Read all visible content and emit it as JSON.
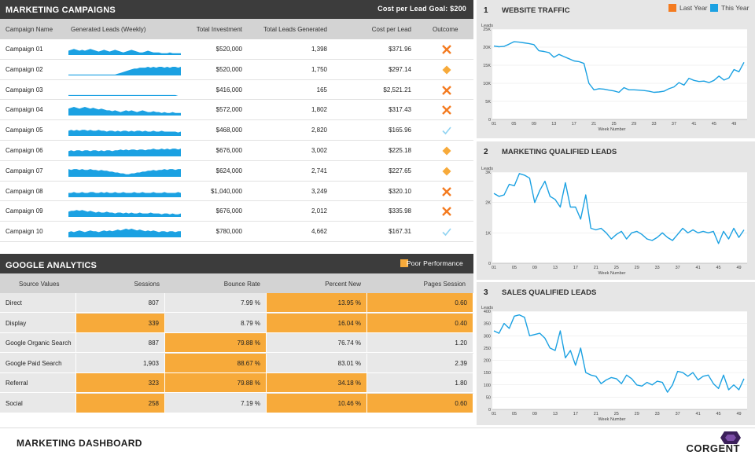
{
  "campaigns": {
    "title": "MARKETING CAMPAIGNS",
    "goal": "Cost per Lead Goal: $200",
    "columns": [
      "Campaign Name",
      "Generated Leads (Weekly)",
      "Total Investment",
      "Total Leads Generated",
      "Cost per Lead",
      "Outcome"
    ],
    "rows": [
      {
        "name": "Campaign 01",
        "investment": "$520,000",
        "leads": "1,398",
        "cpl": "$371.96",
        "outcome": "x",
        "spark": [
          5,
          6,
          7,
          6,
          5,
          6,
          5,
          6,
          7,
          6,
          5,
          4,
          5,
          6,
          5,
          4,
          5,
          6,
          5,
          4,
          3,
          4,
          5,
          6,
          5,
          4,
          3,
          3,
          4,
          5,
          4,
          3,
          3,
          3,
          2,
          2,
          2,
          3,
          2,
          2,
          2,
          2
        ]
      },
      {
        "name": "Campaign 02",
        "investment": "$520,000",
        "leads": "1,750",
        "cpl": "$297.14",
        "outcome": "diamond",
        "spark": [
          1,
          1,
          1,
          1,
          1,
          1,
          1,
          1,
          1,
          1,
          1,
          1,
          1,
          1,
          1,
          1,
          1,
          1,
          2,
          3,
          4,
          5,
          6,
          7,
          8,
          8,
          9,
          9,
          9,
          10,
          9,
          10,
          9,
          10,
          10,
          9,
          10,
          9,
          10,
          10,
          9,
          10
        ]
      },
      {
        "name": "Campaign 03",
        "investment": "$416,000",
        "leads": "165",
        "cpl": "$2,521.21",
        "outcome": "x",
        "spark": [
          1,
          1,
          1,
          1,
          1,
          1,
          1,
          1,
          1,
          1,
          1,
          1,
          1,
          1,
          1,
          1,
          1,
          1,
          1,
          1,
          1,
          1,
          1,
          1,
          1,
          1,
          1,
          1,
          1,
          1,
          1,
          1,
          1,
          1,
          1,
          1,
          1,
          1,
          1,
          1,
          0,
          0
        ]
      },
      {
        "name": "Campaign 04",
        "investment": "$572,000",
        "leads": "1,802",
        "cpl": "$317.43",
        "outcome": "x",
        "spark": [
          8,
          9,
          10,
          9,
          8,
          9,
          10,
          9,
          8,
          9,
          8,
          7,
          8,
          7,
          6,
          6,
          5,
          6,
          5,
          4,
          5,
          6,
          5,
          6,
          5,
          4,
          5,
          6,
          5,
          4,
          4,
          5,
          4,
          4,
          3,
          4,
          3,
          3,
          4,
          3,
          3,
          3
        ]
      },
      {
        "name": "Campaign 05",
        "investment": "$468,000",
        "leads": "2,820",
        "cpl": "$165.96",
        "outcome": "check",
        "spark": [
          6,
          7,
          6,
          7,
          6,
          7,
          7,
          6,
          7,
          6,
          6,
          7,
          6,
          6,
          5,
          6,
          6,
          5,
          6,
          5,
          6,
          6,
          5,
          6,
          5,
          6,
          6,
          5,
          6,
          5,
          5,
          6,
          5,
          5,
          6,
          5,
          5,
          5,
          5,
          5,
          4,
          5
        ]
      },
      {
        "name": "Campaign 06",
        "investment": "$676,000",
        "leads": "3,002",
        "cpl": "$225.18",
        "outcome": "diamond",
        "spark": [
          6,
          7,
          6,
          7,
          7,
          6,
          7,
          7,
          6,
          7,
          7,
          6,
          7,
          6,
          7,
          7,
          6,
          7,
          7,
          8,
          7,
          8,
          7,
          8,
          8,
          7,
          8,
          8,
          7,
          8,
          8,
          9,
          8,
          8,
          9,
          8,
          9,
          8,
          9,
          9,
          8,
          9
        ]
      },
      {
        "name": "Campaign 07",
        "investment": "$624,000",
        "leads": "2,741",
        "cpl": "$227.65",
        "outcome": "diamond",
        "spark": [
          9,
          8,
          9,
          9,
          8,
          9,
          8,
          8,
          9,
          8,
          8,
          7,
          8,
          7,
          7,
          6,
          6,
          5,
          5,
          4,
          4,
          3,
          3,
          4,
          4,
          5,
          5,
          6,
          6,
          7,
          7,
          8,
          7,
          8,
          8,
          9,
          8,
          9,
          9,
          8,
          9,
          9
        ]
      },
      {
        "name": "Campaign 08",
        "investment": "$1,040,000",
        "leads": "3,249",
        "cpl": "$320.10",
        "outcome": "x",
        "spark": [
          5,
          5,
          6,
          5,
          5,
          6,
          5,
          5,
          6,
          6,
          5,
          5,
          6,
          5,
          6,
          5,
          5,
          6,
          5,
          5,
          6,
          5,
          5,
          5,
          6,
          5,
          5,
          6,
          5,
          5,
          5,
          6,
          5,
          5,
          5,
          6,
          5,
          5,
          5,
          5,
          6,
          5
        ]
      },
      {
        "name": "Campaign 09",
        "investment": "$676,000",
        "leads": "2,012",
        "cpl": "$335.98",
        "outcome": "x",
        "spark": [
          6,
          7,
          7,
          8,
          7,
          8,
          7,
          6,
          7,
          6,
          5,
          6,
          5,
          5,
          6,
          5,
          5,
          4,
          5,
          5,
          4,
          5,
          4,
          5,
          4,
          4,
          5,
          4,
          4,
          4,
          5,
          4,
          4,
          4,
          3,
          4,
          4,
          3,
          4,
          3,
          3,
          4
        ]
      },
      {
        "name": "Campaign 10",
        "investment": "$780,000",
        "leads": "4,662",
        "cpl": "$167.31",
        "outcome": "check",
        "spark": [
          6,
          7,
          6,
          7,
          8,
          7,
          6,
          7,
          8,
          7,
          7,
          6,
          7,
          8,
          7,
          8,
          7,
          8,
          9,
          8,
          9,
          10,
          9,
          10,
          9,
          8,
          9,
          8,
          7,
          8,
          7,
          8,
          7,
          6,
          7,
          7,
          6,
          7,
          7,
          6,
          7,
          7
        ]
      }
    ]
  },
  "analytics": {
    "title": "GOOGLE ANALYTICS",
    "legend": "Poor Performance",
    "columns": [
      "Source Values",
      "Sessions",
      "Bounce Rate",
      "Percent New",
      "Pages Session"
    ],
    "rows": [
      {
        "source": "Direct",
        "sessions": "807",
        "bounce": "7.99 %",
        "pnew": "13.95 %",
        "pages": "0.60",
        "poor": [
          false,
          false,
          true,
          true
        ]
      },
      {
        "source": "Display",
        "sessions": "339",
        "bounce": "8.79 %",
        "pnew": "16.04 %",
        "pages": "0.40",
        "poor": [
          true,
          false,
          true,
          true
        ]
      },
      {
        "source": "Google Organic Search",
        "sessions": "887",
        "bounce": "79.88 %",
        "pnew": "76.74 %",
        "pages": "1.20",
        "poor": [
          false,
          true,
          false,
          false
        ]
      },
      {
        "source": "Google Paid Search",
        "sessions": "1,903",
        "bounce": "88.67 %",
        "pnew": "83.01 %",
        "pages": "2.39",
        "poor": [
          false,
          true,
          false,
          false
        ]
      },
      {
        "source": "Referral",
        "sessions": "323",
        "bounce": "79.88 %",
        "pnew": "34.18 %",
        "pages": "1.80",
        "poor": [
          true,
          true,
          true,
          false
        ]
      },
      {
        "source": "Social",
        "sessions": "258",
        "bounce": "7.19 %",
        "pnew": "10.46 %",
        "pages": "0.60",
        "poor": [
          true,
          false,
          true,
          true
        ]
      }
    ],
    "colors": {
      "poor": "#f7aa3a",
      "normal": "#e8e8e8"
    }
  },
  "chart_data": [
    {
      "type": "line",
      "number": "1",
      "title": "WEBSITE TRAFFIC",
      "ylabel": "Leads",
      "xlabel": "Week Number",
      "yticks": [
        "0",
        "5K",
        "10K",
        "15K",
        "20K",
        "25K"
      ],
      "ylim": [
        0,
        25000
      ],
      "xticks": [
        "01",
        "05",
        "09",
        "13",
        "17",
        "21",
        "25",
        "29",
        "33",
        "37",
        "41",
        "45",
        "49"
      ],
      "legend": [
        "Last Year",
        "This Year"
      ],
      "colors": {
        "last_year": "#f47b20",
        "this_year": "#1ba1e2"
      },
      "series": [
        {
          "name": "This Year",
          "values": [
            20300,
            20100,
            20200,
            20800,
            21500,
            21400,
            21200,
            21000,
            20700,
            19000,
            18800,
            18500,
            17200,
            18000,
            17400,
            16800,
            16200,
            16000,
            15500,
            10000,
            8200,
            8500,
            8400,
            8100,
            7900,
            7500,
            8800,
            8200,
            8200,
            8100,
            8000,
            7800,
            7500,
            7600,
            7800,
            8500,
            9000,
            10200,
            9500,
            11400,
            10800,
            10500,
            10600,
            10200,
            10800,
            12000,
            10900,
            11500,
            13800,
            13200,
            15800
          ]
        }
      ]
    },
    {
      "type": "line",
      "number": "2",
      "title": "MARKETING QUALIFIED LEADS",
      "ylabel": "Leads",
      "xlabel": "Week Number",
      "yticks": [
        "0",
        "1K",
        "2K",
        "3K"
      ],
      "ylim": [
        0,
        3000
      ],
      "xticks": [
        "01",
        "05",
        "09",
        "13",
        "17",
        "21",
        "25",
        "29",
        "33",
        "37",
        "41",
        "45",
        "49"
      ],
      "series": [
        {
          "name": "This Year",
          "values": [
            2300,
            2200,
            2250,
            2600,
            2550,
            2950,
            2900,
            2800,
            2000,
            2400,
            2700,
            2200,
            2100,
            1850,
            2650,
            1850,
            1850,
            1450,
            2250,
            1150,
            1100,
            1150,
            1000,
            800,
            950,
            1050,
            800,
            1000,
            1050,
            950,
            800,
            750,
            850,
            1000,
            850,
            750,
            950,
            1150,
            1000,
            1100,
            1000,
            1050,
            1000,
            1050,
            650,
            1050,
            800,
            1150,
            850,
            1100
          ]
        }
      ]
    },
    {
      "type": "line",
      "number": "3",
      "title": "SALES QUALIFIED LEADS",
      "ylabel": "Leads",
      "xlabel": "Week Number",
      "yticks": [
        "0",
        "50",
        "100",
        "150",
        "200",
        "250",
        "300",
        "350",
        "400"
      ],
      "ylim": [
        0,
        400
      ],
      "xticks": [
        "01",
        "05",
        "09",
        "13",
        "17",
        "21",
        "25",
        "29",
        "33",
        "37",
        "41",
        "45",
        "49"
      ],
      "series": [
        {
          "name": "This Year",
          "values": [
            320,
            310,
            350,
            330,
            380,
            385,
            375,
            300,
            305,
            310,
            290,
            250,
            240,
            320,
            210,
            240,
            180,
            250,
            150,
            140,
            135,
            105,
            120,
            130,
            125,
            105,
            140,
            125,
            100,
            95,
            110,
            100,
            115,
            110,
            70,
            100,
            155,
            150,
            135,
            150,
            120,
            135,
            140,
            105,
            85,
            140,
            80,
            100,
            80,
            125
          ]
        }
      ]
    }
  ],
  "footer": {
    "title": "MARKETING DASHBOARD",
    "logo_text": "CORGENT"
  }
}
